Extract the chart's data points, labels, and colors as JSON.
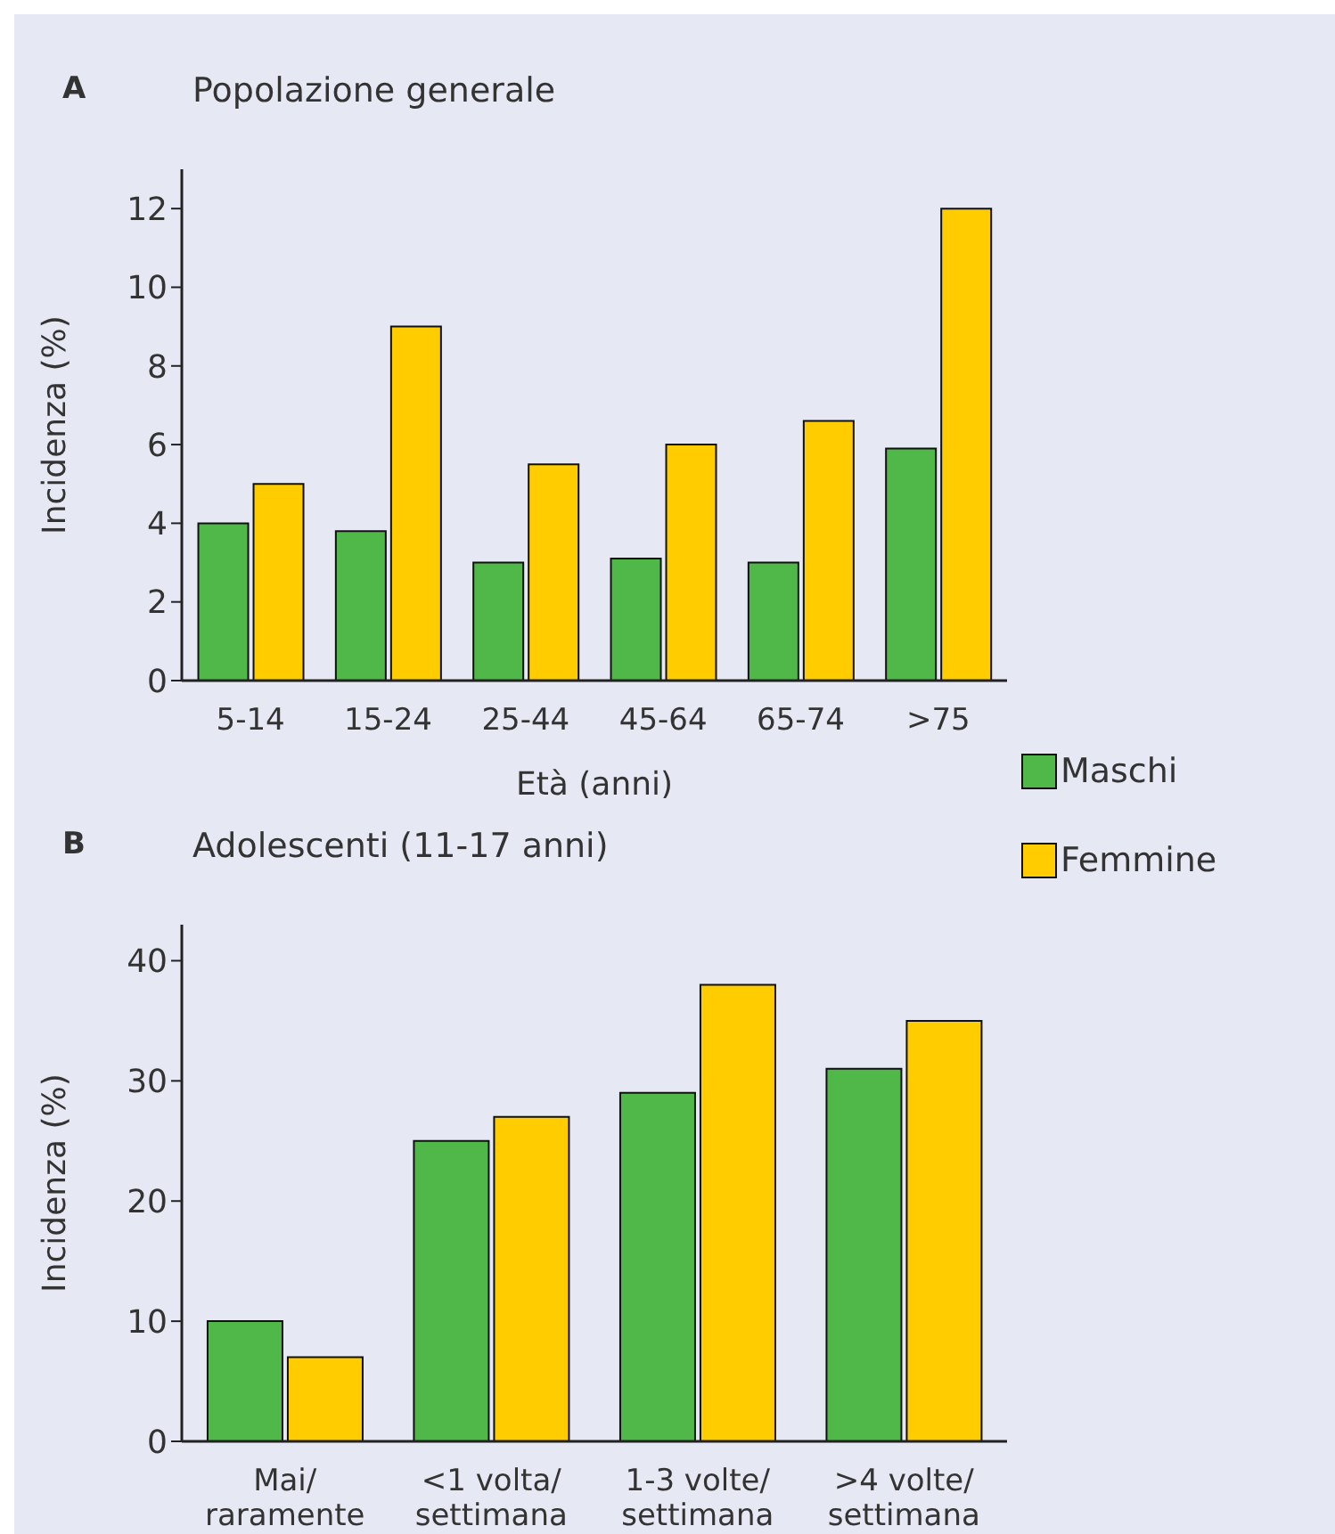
{
  "chart_data": [
    {
      "type": "bar",
      "title": "Popolazione generale",
      "annotations": [
        "A"
      ],
      "xlabel": "Età (anni)",
      "ylabel": "Incidenza (%)",
      "categories": [
        "5-14",
        "15-24",
        "25-44",
        "45-64",
        "65-74",
        ">75"
      ],
      "series": [
        {
          "name": "Maschi",
          "color": "#4fb848",
          "values": [
            4,
            3.8,
            3,
            3.1,
            3,
            5.9
          ]
        },
        {
          "name": "Femmine",
          "color": "#ffcc00",
          "values": [
            5,
            9,
            5.5,
            6,
            6.6,
            12
          ]
        }
      ],
      "ylim": [
        0,
        13
      ],
      "yticks": [
        0,
        2,
        4,
        6,
        8,
        10,
        12
      ],
      "grid": false,
      "legend": "bottom right"
    },
    {
      "type": "bar",
      "title": "Adolescenti (11-17 anni)",
      "annotations": [
        "B"
      ],
      "ylabel": "Incidenza (%)",
      "categories": [
        "Mai/\nraramente",
        "<1 volta/\nsettimana",
        "1-3 volte/\nsettimana",
        ">4 volte/\nsettimana"
      ],
      "series": [
        {
          "color": "#4fb848",
          "values": [
            10,
            25,
            29,
            31
          ]
        },
        {
          "color": "#ffcc00",
          "values": [
            7,
            27,
            38,
            35
          ]
        }
      ],
      "ylim": [
        0,
        43
      ],
      "yticks": [
        0,
        10,
        20,
        30,
        40
      ],
      "grid": false
    }
  ]
}
